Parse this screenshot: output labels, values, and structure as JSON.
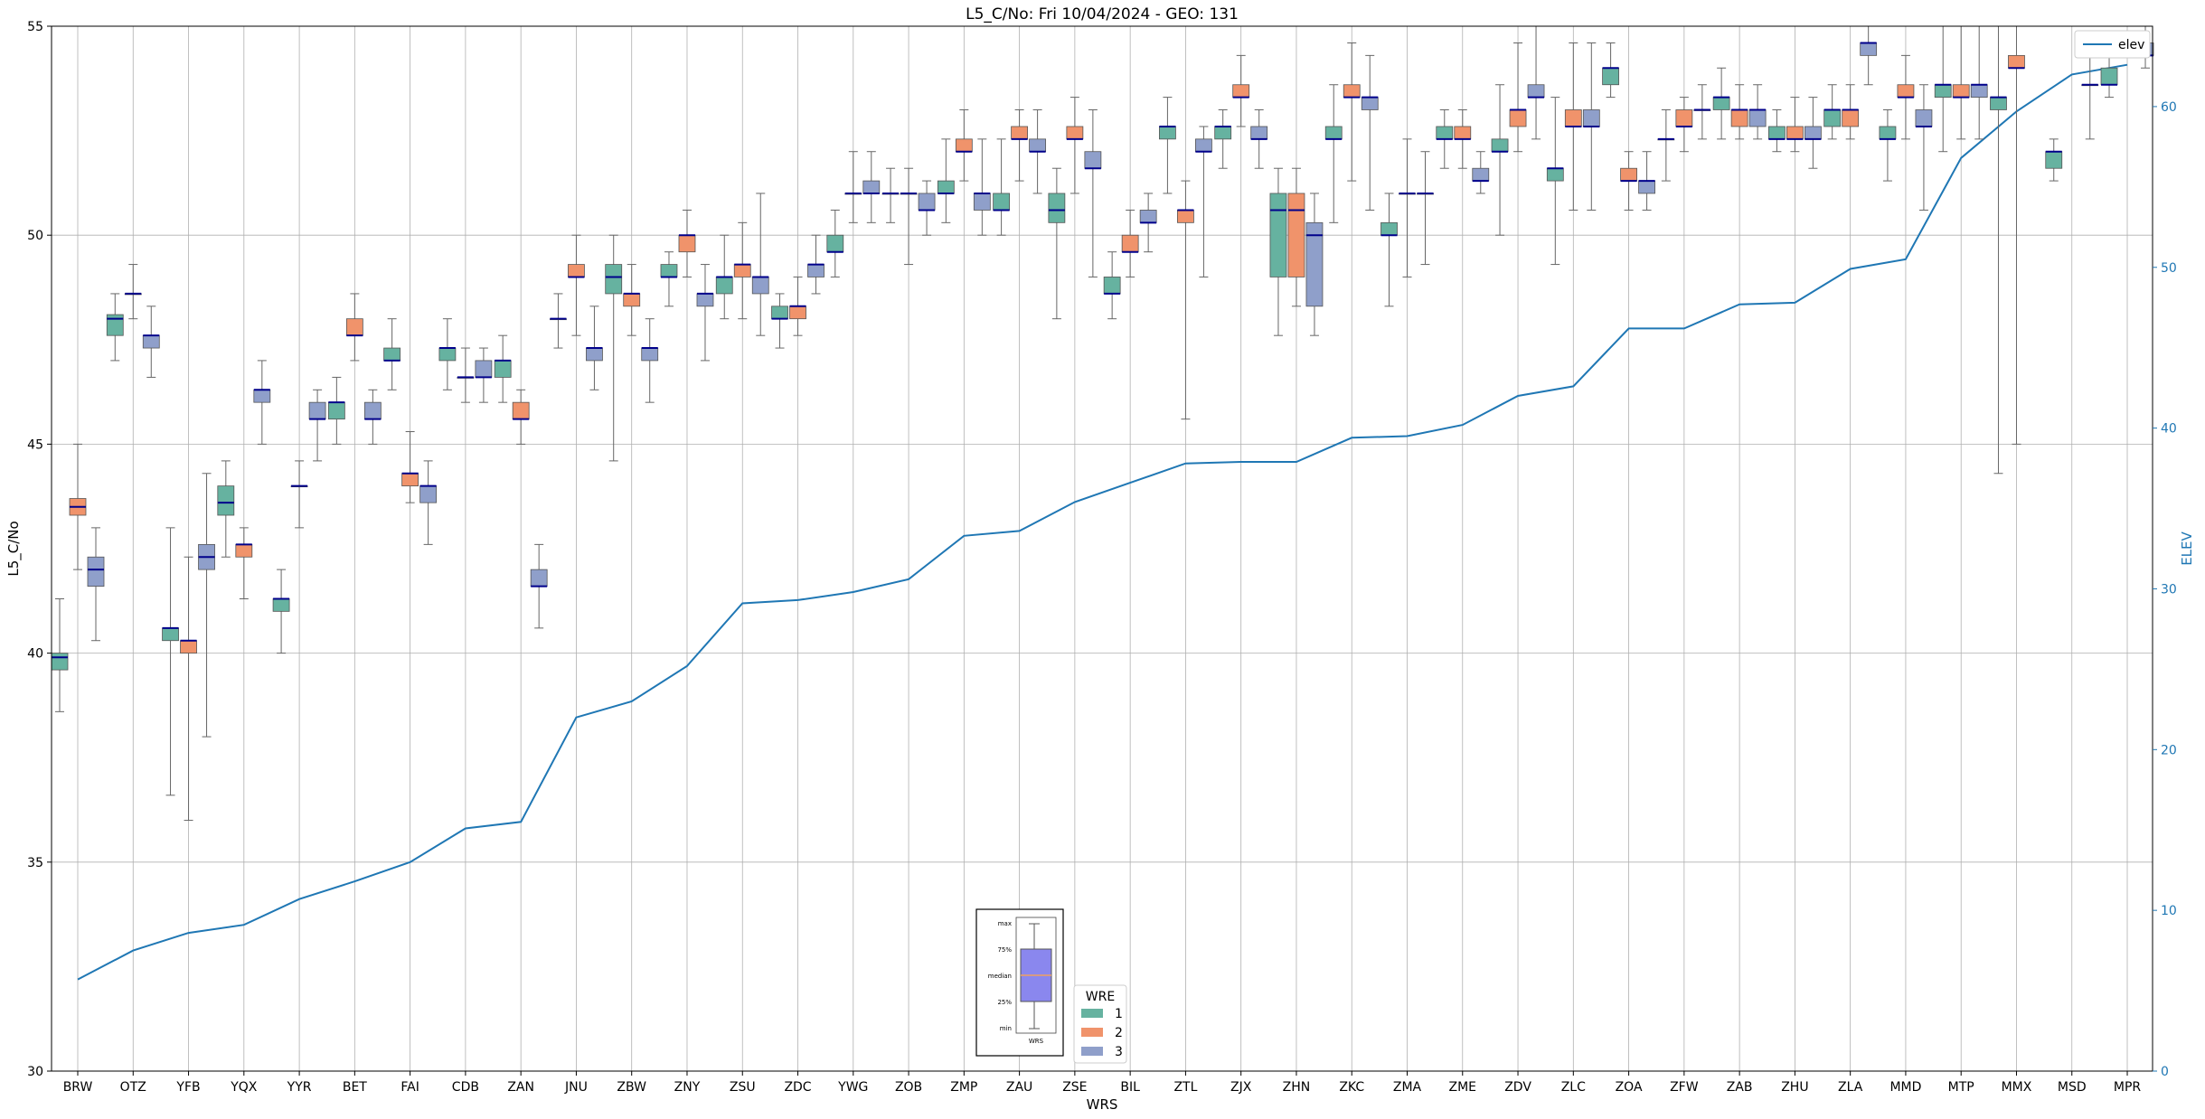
{
  "chart_data": {
    "type": "box",
    "title": "L5_C/No: Fri 10/04/2024 - GEO: 131",
    "xlabel": "WRS",
    "ylabel": "L5_C/No",
    "y2label": "ELEV",
    "ylim": [
      30,
      55
    ],
    "y2lim": [
      0,
      65
    ],
    "yticks": [
      30,
      35,
      40,
      45,
      50,
      55
    ],
    "y2ticks": [
      0,
      10,
      20,
      30,
      40,
      50,
      60
    ],
    "grid": true,
    "categories": [
      "BRW",
      "OTZ",
      "YFB",
      "YQX",
      "YYR",
      "BET",
      "FAI",
      "CDB",
      "ZAN",
      "JNU",
      "ZBW",
      "ZNY",
      "ZSU",
      "ZDC",
      "YWG",
      "ZOB",
      "ZMP",
      "ZAU",
      "ZSE",
      "BIL",
      "ZTL",
      "ZJX",
      "ZHN",
      "ZKC",
      "ZMA",
      "ZME",
      "ZDV",
      "ZLC",
      "ZOA",
      "ZFW",
      "ZAB",
      "ZHU",
      "ZLA",
      "MMD",
      "MTP",
      "MMX",
      "MSD",
      "MPR"
    ],
    "colors": {
      "1": "#66b2a0",
      "2": "#f0936b",
      "3": "#8f9fca",
      "elev": "#1f77b4",
      "median": "#00008b"
    },
    "legend_wre": {
      "title": "WRE",
      "items": [
        "1",
        "2",
        "3"
      ],
      "placement": "bottom-center"
    },
    "legend_elev": {
      "label": "elev",
      "placement": "top-right"
    },
    "key_box": {
      "labels": [
        "max",
        "75%",
        "median",
        "25%",
        "min"
      ],
      "xlabel": "WRS"
    },
    "boxes": [
      {
        "cat": "BRW",
        "wre": 1,
        "min": 38.6,
        "q1": 39.6,
        "med": 39.9,
        "q3": 40.0,
        "max": 41.3
      },
      {
        "cat": "BRW",
        "wre": 2,
        "min": 42.0,
        "q1": 43.3,
        "med": 43.5,
        "q3": 43.7,
        "max": 45.0
      },
      {
        "cat": "BRW",
        "wre": 3,
        "min": 40.3,
        "q1": 41.6,
        "med": 42.0,
        "q3": 42.3,
        "max": 43.0
      },
      {
        "cat": "OTZ",
        "wre": 1,
        "min": 47.0,
        "q1": 47.6,
        "med": 48.0,
        "q3": 48.1,
        "max": 48.6
      },
      {
        "cat": "OTZ",
        "wre": 2,
        "min": 48.0,
        "q1": 48.6,
        "med": 48.6,
        "q3": 48.6,
        "max": 49.3
      },
      {
        "cat": "OTZ",
        "wre": 3,
        "min": 46.6,
        "q1": 47.3,
        "med": 47.6,
        "q3": 47.6,
        "max": 48.3
      },
      {
        "cat": "YFB",
        "wre": 1,
        "min": 36.6,
        "q1": 40.3,
        "med": 40.6,
        "q3": 40.6,
        "max": 43.0
      },
      {
        "cat": "YFB",
        "wre": 2,
        "min": 36.0,
        "q1": 40.0,
        "med": 40.3,
        "q3": 40.3,
        "max": 42.3
      },
      {
        "cat": "YFB",
        "wre": 3,
        "min": 38.0,
        "q1": 42.0,
        "med": 42.3,
        "q3": 42.6,
        "max": 44.3
      },
      {
        "cat": "YQX",
        "wre": 1,
        "min": 42.3,
        "q1": 43.3,
        "med": 43.6,
        "q3": 44.0,
        "max": 44.6
      },
      {
        "cat": "YQX",
        "wre": 2,
        "min": 41.3,
        "q1": 42.3,
        "med": 42.6,
        "q3": 42.6,
        "max": 43.0
      },
      {
        "cat": "YQX",
        "wre": 3,
        "min": 45.0,
        "q1": 46.0,
        "med": 46.3,
        "q3": 46.3,
        "max": 47.0
      },
      {
        "cat": "YYR",
        "wre": 1,
        "min": 40.0,
        "q1": 41.0,
        "med": 41.3,
        "q3": 41.3,
        "max": 42.0
      },
      {
        "cat": "YYR",
        "wre": 2,
        "min": 43.0,
        "q1": 44.0,
        "med": 44.0,
        "q3": 44.0,
        "max": 44.6
      },
      {
        "cat": "YYR",
        "wre": 3,
        "min": 44.6,
        "q1": 45.6,
        "med": 45.6,
        "q3": 46.0,
        "max": 46.3
      },
      {
        "cat": "BET",
        "wre": 1,
        "min": 45.0,
        "q1": 45.6,
        "med": 46.0,
        "q3": 46.0,
        "max": 46.6
      },
      {
        "cat": "BET",
        "wre": 2,
        "min": 47.0,
        "q1": 47.6,
        "med": 47.6,
        "q3": 48.0,
        "max": 48.6
      },
      {
        "cat": "BET",
        "wre": 3,
        "min": 45.0,
        "q1": 45.6,
        "med": 45.6,
        "q3": 46.0,
        "max": 46.3
      },
      {
        "cat": "FAI",
        "wre": 1,
        "min": 46.3,
        "q1": 47.0,
        "med": 47.0,
        "q3": 47.3,
        "max": 48.0
      },
      {
        "cat": "FAI",
        "wre": 2,
        "min": 43.6,
        "q1": 44.0,
        "med": 44.3,
        "q3": 44.3,
        "max": 45.3
      },
      {
        "cat": "FAI",
        "wre": 3,
        "min": 42.6,
        "q1": 43.6,
        "med": 44.0,
        "q3": 44.0,
        "max": 44.6
      },
      {
        "cat": "CDB",
        "wre": 1,
        "min": 46.3,
        "q1": 47.0,
        "med": 47.3,
        "q3": 47.3,
        "max": 48.0
      },
      {
        "cat": "CDB",
        "wre": 2,
        "min": 46.0,
        "q1": 46.6,
        "med": 46.6,
        "q3": 46.6,
        "max": 47.3
      },
      {
        "cat": "CDB",
        "wre": 3,
        "min": 46.0,
        "q1": 46.6,
        "med": 46.6,
        "q3": 47.0,
        "max": 47.3
      },
      {
        "cat": "ZAN",
        "wre": 1,
        "min": 46.0,
        "q1": 46.6,
        "med": 47.0,
        "q3": 47.0,
        "max": 47.6
      },
      {
        "cat": "ZAN",
        "wre": 2,
        "min": 45.0,
        "q1": 45.6,
        "med": 45.6,
        "q3": 46.0,
        "max": 46.3
      },
      {
        "cat": "ZAN",
        "wre": 3,
        "min": 40.6,
        "q1": 41.6,
        "med": 41.6,
        "q3": 42.0,
        "max": 42.6
      },
      {
        "cat": "JNU",
        "wre": 1,
        "min": 47.3,
        "q1": 48.0,
        "med": 48.0,
        "q3": 48.0,
        "max": 48.6
      },
      {
        "cat": "JNU",
        "wre": 2,
        "min": 47.6,
        "q1": 49.0,
        "med": 49.0,
        "q3": 49.3,
        "max": 50.0
      },
      {
        "cat": "JNU",
        "wre": 3,
        "min": 46.3,
        "q1": 47.0,
        "med": 47.3,
        "q3": 47.3,
        "max": 48.3
      },
      {
        "cat": "ZBW",
        "wre": 1,
        "min": 44.6,
        "q1": 48.6,
        "med": 49.0,
        "q3": 49.3,
        "max": 50.0
      },
      {
        "cat": "ZBW",
        "wre": 2,
        "min": 47.6,
        "q1": 48.3,
        "med": 48.6,
        "q3": 48.6,
        "max": 49.3
      },
      {
        "cat": "ZBW",
        "wre": 3,
        "min": 46.0,
        "q1": 47.0,
        "med": 47.3,
        "q3": 47.3,
        "max": 48.0
      },
      {
        "cat": "ZNY",
        "wre": 1,
        "min": 48.3,
        "q1": 49.0,
        "med": 49.0,
        "q3": 49.3,
        "max": 49.6
      },
      {
        "cat": "ZNY",
        "wre": 2,
        "min": 49.0,
        "q1": 49.6,
        "med": 50.0,
        "q3": 50.0,
        "max": 50.6
      },
      {
        "cat": "ZNY",
        "wre": 3,
        "min": 47.0,
        "q1": 48.3,
        "med": 48.6,
        "q3": 48.6,
        "max": 49.3
      },
      {
        "cat": "ZSU",
        "wre": 1,
        "min": 48.0,
        "q1": 48.6,
        "med": 49.0,
        "q3": 49.0,
        "max": 50.0
      },
      {
        "cat": "ZSU",
        "wre": 2,
        "min": 48.0,
        "q1": 49.0,
        "med": 49.3,
        "q3": 49.3,
        "max": 50.3
      },
      {
        "cat": "ZSU",
        "wre": 3,
        "min": 47.6,
        "q1": 48.6,
        "med": 49.0,
        "q3": 49.0,
        "max": 51.0
      },
      {
        "cat": "ZDC",
        "wre": 1,
        "min": 47.3,
        "q1": 48.0,
        "med": 48.0,
        "q3": 48.3,
        "max": 48.6
      },
      {
        "cat": "ZDC",
        "wre": 2,
        "min": 47.6,
        "q1": 48.0,
        "med": 48.3,
        "q3": 48.3,
        "max": 49.0
      },
      {
        "cat": "ZDC",
        "wre": 3,
        "min": 48.6,
        "q1": 49.0,
        "med": 49.3,
        "q3": 49.3,
        "max": 50.0
      },
      {
        "cat": "YWG",
        "wre": 1,
        "min": 49.0,
        "q1": 49.6,
        "med": 49.6,
        "q3": 50.0,
        "max": 50.6
      },
      {
        "cat": "YWG",
        "wre": 2,
        "min": 50.3,
        "q1": 51.0,
        "med": 51.0,
        "q3": 51.0,
        "max": 52.0
      },
      {
        "cat": "YWG",
        "wre": 3,
        "min": 50.3,
        "q1": 51.0,
        "med": 51.0,
        "q3": 51.3,
        "max": 52.0
      },
      {
        "cat": "ZOB",
        "wre": 1,
        "min": 50.3,
        "q1": 51.0,
        "med": 51.0,
        "q3": 51.0,
        "max": 51.6
      },
      {
        "cat": "ZOB",
        "wre": 2,
        "min": 49.3,
        "q1": 51.0,
        "med": 51.0,
        "q3": 51.0,
        "max": 51.6
      },
      {
        "cat": "ZOB",
        "wre": 3,
        "min": 50.0,
        "q1": 50.6,
        "med": 50.6,
        "q3": 51.0,
        "max": 51.3
      },
      {
        "cat": "ZMP",
        "wre": 1,
        "min": 50.3,
        "q1": 51.0,
        "med": 51.0,
        "q3": 51.3,
        "max": 52.3
      },
      {
        "cat": "ZMP",
        "wre": 2,
        "min": 51.3,
        "q1": 52.0,
        "med": 52.0,
        "q3": 52.3,
        "max": 53.0
      },
      {
        "cat": "ZMP",
        "wre": 3,
        "min": 50.0,
        "q1": 50.6,
        "med": 51.0,
        "q3": 51.0,
        "max": 52.3
      },
      {
        "cat": "ZAU",
        "wre": 1,
        "min": 50.0,
        "q1": 50.6,
        "med": 50.6,
        "q3": 51.0,
        "max": 52.3
      },
      {
        "cat": "ZAU",
        "wre": 2,
        "min": 51.3,
        "q1": 52.3,
        "med": 52.3,
        "q3": 52.6,
        "max": 53.0
      },
      {
        "cat": "ZAU",
        "wre": 3,
        "min": 51.0,
        "q1": 52.0,
        "med": 52.0,
        "q3": 52.3,
        "max": 53.0
      },
      {
        "cat": "ZSE",
        "wre": 1,
        "min": 48.0,
        "q1": 50.3,
        "med": 50.6,
        "q3": 51.0,
        "max": 51.6
      },
      {
        "cat": "ZSE",
        "wre": 2,
        "min": 51.0,
        "q1": 52.3,
        "med": 52.3,
        "q3": 52.6,
        "max": 53.3
      },
      {
        "cat": "ZSE",
        "wre": 3,
        "min": 49.0,
        "q1": 51.6,
        "med": 51.6,
        "q3": 52.0,
        "max": 53.0
      },
      {
        "cat": "BIL",
        "wre": 1,
        "min": 48.0,
        "q1": 48.6,
        "med": 48.6,
        "q3": 49.0,
        "max": 49.6
      },
      {
        "cat": "BIL",
        "wre": 2,
        "min": 49.0,
        "q1": 49.6,
        "med": 49.6,
        "q3": 50.0,
        "max": 50.6
      },
      {
        "cat": "BIL",
        "wre": 3,
        "min": 49.6,
        "q1": 50.3,
        "med": 50.3,
        "q3": 50.6,
        "max": 51.0
      },
      {
        "cat": "ZTL",
        "wre": 1,
        "min": 51.0,
        "q1": 52.3,
        "med": 52.6,
        "q3": 52.6,
        "max": 53.3
      },
      {
        "cat": "ZTL",
        "wre": 2,
        "min": 45.6,
        "q1": 50.3,
        "med": 50.6,
        "q3": 50.6,
        "max": 51.3
      },
      {
        "cat": "ZTL",
        "wre": 3,
        "min": 49.0,
        "q1": 52.0,
        "med": 52.0,
        "q3": 52.3,
        "max": 52.6
      },
      {
        "cat": "ZJX",
        "wre": 1,
        "min": 51.6,
        "q1": 52.3,
        "med": 52.6,
        "q3": 52.6,
        "max": 53.0
      },
      {
        "cat": "ZJX",
        "wre": 2,
        "min": 52.6,
        "q1": 53.3,
        "med": 53.3,
        "q3": 53.6,
        "max": 54.3
      },
      {
        "cat": "ZJX",
        "wre": 3,
        "min": 51.6,
        "q1": 52.3,
        "med": 52.3,
        "q3": 52.6,
        "max": 53.0
      },
      {
        "cat": "ZHN",
        "wre": 1,
        "min": 47.6,
        "q1": 49.0,
        "med": 50.6,
        "q3": 51.0,
        "max": 51.6
      },
      {
        "cat": "ZHN",
        "wre": 2,
        "min": 48.3,
        "q1": 49.0,
        "med": 50.6,
        "q3": 51.0,
        "max": 51.6
      },
      {
        "cat": "ZHN",
        "wre": 3,
        "min": 47.6,
        "q1": 48.3,
        "med": 50.0,
        "q3": 50.3,
        "max": 51.0
      },
      {
        "cat": "ZKC",
        "wre": 1,
        "min": 50.3,
        "q1": 52.3,
        "med": 52.3,
        "q3": 52.6,
        "max": 53.6
      },
      {
        "cat": "ZKC",
        "wre": 2,
        "min": 51.3,
        "q1": 53.3,
        "med": 53.3,
        "q3": 53.6,
        "max": 54.6
      },
      {
        "cat": "ZKC",
        "wre": 3,
        "min": 50.6,
        "q1": 53.0,
        "med": 53.3,
        "q3": 53.3,
        "max": 54.3
      },
      {
        "cat": "ZMA",
        "wre": 1,
        "min": 48.3,
        "q1": 50.0,
        "med": 50.0,
        "q3": 50.3,
        "max": 51.0
      },
      {
        "cat": "ZMA",
        "wre": 2,
        "min": 49.0,
        "q1": 51.0,
        "med": 51.0,
        "q3": 51.0,
        "max": 52.3
      },
      {
        "cat": "ZMA",
        "wre": 3,
        "min": 49.3,
        "q1": 51.0,
        "med": 51.0,
        "q3": 51.0,
        "max": 52.0
      },
      {
        "cat": "ZME",
        "wre": 1,
        "min": 51.6,
        "q1": 52.3,
        "med": 52.3,
        "q3": 52.6,
        "max": 53.0
      },
      {
        "cat": "ZME",
        "wre": 2,
        "min": 51.6,
        "q1": 52.3,
        "med": 52.3,
        "q3": 52.6,
        "max": 53.0
      },
      {
        "cat": "ZME",
        "wre": 3,
        "min": 51.0,
        "q1": 51.3,
        "med": 51.3,
        "q3": 51.6,
        "max": 52.0
      },
      {
        "cat": "ZDV",
        "wre": 1,
        "min": 50.0,
        "q1": 52.0,
        "med": 52.0,
        "q3": 52.3,
        "max": 53.6
      },
      {
        "cat": "ZDV",
        "wre": 2,
        "min": 52.0,
        "q1": 52.6,
        "med": 53.0,
        "q3": 53.0,
        "max": 54.6
      },
      {
        "cat": "ZDV",
        "wre": 3,
        "min": 52.3,
        "q1": 53.3,
        "med": 53.3,
        "q3": 53.6,
        "max": 55.0
      },
      {
        "cat": "ZLC",
        "wre": 1,
        "min": 49.3,
        "q1": 51.3,
        "med": 51.6,
        "q3": 51.6,
        "max": 53.3
      },
      {
        "cat": "ZLC",
        "wre": 2,
        "min": 50.6,
        "q1": 52.6,
        "med": 52.6,
        "q3": 53.0,
        "max": 54.6
      },
      {
        "cat": "ZLC",
        "wre": 3,
        "min": 50.6,
        "q1": 52.6,
        "med": 52.6,
        "q3": 53.0,
        "max": 54.6
      },
      {
        "cat": "ZOA",
        "wre": 1,
        "min": 53.3,
        "q1": 53.6,
        "med": 54.0,
        "q3": 54.0,
        "max": 54.6
      },
      {
        "cat": "ZOA",
        "wre": 2,
        "min": 50.6,
        "q1": 51.3,
        "med": 51.3,
        "q3": 51.6,
        "max": 52.0
      },
      {
        "cat": "ZOA",
        "wre": 3,
        "min": 50.6,
        "q1": 51.0,
        "med": 51.3,
        "q3": 51.3,
        "max": 52.0
      },
      {
        "cat": "ZFW",
        "wre": 1,
        "min": 51.3,
        "q1": 52.3,
        "med": 52.3,
        "q3": 52.3,
        "max": 53.0
      },
      {
        "cat": "ZFW",
        "wre": 2,
        "min": 52.0,
        "q1": 52.6,
        "med": 52.6,
        "q3": 53.0,
        "max": 53.3
      },
      {
        "cat": "ZFW",
        "wre": 3,
        "min": 52.3,
        "q1": 53.0,
        "med": 53.0,
        "q3": 53.0,
        "max": 53.6
      },
      {
        "cat": "ZAB",
        "wre": 1,
        "min": 52.3,
        "q1": 53.0,
        "med": 53.3,
        "q3": 53.3,
        "max": 54.0
      },
      {
        "cat": "ZAB",
        "wre": 2,
        "min": 52.3,
        "q1": 52.6,
        "med": 53.0,
        "q3": 53.0,
        "max": 53.6
      },
      {
        "cat": "ZAB",
        "wre": 3,
        "min": 52.3,
        "q1": 52.6,
        "med": 53.0,
        "q3": 53.0,
        "max": 53.6
      },
      {
        "cat": "ZHU",
        "wre": 1,
        "min": 52.0,
        "q1": 52.3,
        "med": 52.3,
        "q3": 52.6,
        "max": 53.0
      },
      {
        "cat": "ZHU",
        "wre": 2,
        "min": 52.0,
        "q1": 52.3,
        "med": 52.3,
        "q3": 52.6,
        "max": 53.3
      },
      {
        "cat": "ZHU",
        "wre": 3,
        "min": 51.6,
        "q1": 52.3,
        "med": 52.3,
        "q3": 52.6,
        "max": 53.3
      },
      {
        "cat": "ZLA",
        "wre": 1,
        "min": 52.3,
        "q1": 52.6,
        "med": 53.0,
        "q3": 53.0,
        "max": 53.6
      },
      {
        "cat": "ZLA",
        "wre": 2,
        "min": 52.3,
        "q1": 52.6,
        "med": 53.0,
        "q3": 53.0,
        "max": 53.6
      },
      {
        "cat": "ZLA",
        "wre": 3,
        "min": 53.6,
        "q1": 54.3,
        "med": 54.6,
        "q3": 54.6,
        "max": 55.0
      },
      {
        "cat": "MMD",
        "wre": 1,
        "min": 51.3,
        "q1": 52.3,
        "med": 52.3,
        "q3": 52.6,
        "max": 53.0
      },
      {
        "cat": "MMD",
        "wre": 2,
        "min": 52.3,
        "q1": 53.3,
        "med": 53.3,
        "q3": 53.6,
        "max": 54.3
      },
      {
        "cat": "MMD",
        "wre": 3,
        "min": 50.6,
        "q1": 52.6,
        "med": 52.6,
        "q3": 53.0,
        "max": 53.6
      },
      {
        "cat": "MTP",
        "wre": 1,
        "min": 52.0,
        "q1": 53.3,
        "med": 53.6,
        "q3": 53.6,
        "max": 55.0
      },
      {
        "cat": "MTP",
        "wre": 2,
        "min": 52.3,
        "q1": 53.3,
        "med": 53.3,
        "q3": 53.6,
        "max": 55.0
      },
      {
        "cat": "MTP",
        "wre": 3,
        "min": 52.3,
        "q1": 53.3,
        "med": 53.6,
        "q3": 53.6,
        "max": 55.0
      },
      {
        "cat": "MMX",
        "wre": 1,
        "min": 44.3,
        "q1": 53.0,
        "med": 53.3,
        "q3": 53.3,
        "max": 55.0
      },
      {
        "cat": "MMX",
        "wre": 2,
        "min": 45.0,
        "q1": 54.0,
        "med": 54.0,
        "q3": 54.3,
        "max": 55.0
      },
      {
        "cat": "MSD",
        "wre": 1,
        "min": 51.3,
        "q1": 51.6,
        "med": 52.0,
        "q3": 52.0,
        "max": 52.3
      },
      {
        "cat": "MSD",
        "wre": 3,
        "min": 52.3,
        "q1": 53.6,
        "med": 53.6,
        "q3": 53.6,
        "max": 54.3
      },
      {
        "cat": "MPR",
        "wre": 1,
        "min": 53.3,
        "q1": 53.6,
        "med": 53.6,
        "q3": 54.0,
        "max": 54.3
      },
      {
        "cat": "MPR",
        "wre": 3,
        "min": 54.0,
        "q1": 54.3,
        "med": 54.3,
        "q3": 54.6,
        "max": 55.0
      }
    ],
    "elev": {
      "name": "elev",
      "values": [
        5.7,
        7.5,
        8.6,
        9.1,
        10.7,
        11.8,
        13.0,
        15.1,
        15.5,
        22.0,
        23.0,
        25.2,
        29.1,
        29.3,
        29.8,
        30.6,
        33.3,
        33.6,
        35.4,
        36.6,
        37.8,
        37.9,
        37.9,
        39.4,
        39.5,
        40.2,
        42.0,
        42.6,
        46.2,
        46.2,
        47.7,
        47.8,
        49.9,
        50.5,
        56.8,
        59.7,
        62.0,
        62.6
      ]
    }
  }
}
